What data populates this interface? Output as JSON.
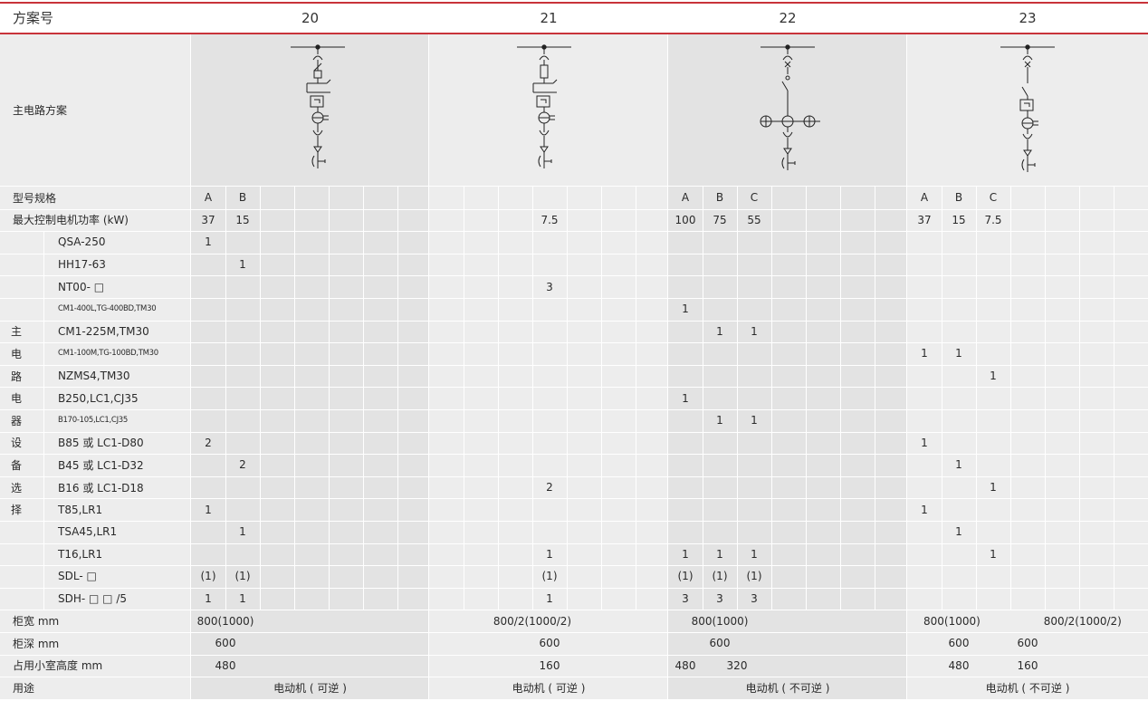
{
  "header": {
    "title": "方案号",
    "schemes": [
      "20",
      "21",
      "22",
      "23"
    ]
  },
  "row_labels": {
    "circuit": "主电路方案",
    "model": "型号规格",
    "power": "最大控制电机功率 (kW)",
    "width": "柜宽 mm",
    "depth": "柜深 mm",
    "height": "占用小室高度 mm",
    "use": "用途",
    "equip_vertical": [
      "主",
      "电",
      "路",
      "电",
      "器",
      "设",
      "备",
      "选",
      "择"
    ]
  },
  "equipment": [
    {
      "name": "QSA-250",
      "small": false
    },
    {
      "name": "HH17-63",
      "small": false
    },
    {
      "name": "NT00- □",
      "small": false
    },
    {
      "name": "CM1-400L,TG-400BD,TM30",
      "small": true
    },
    {
      "name": "CM1-225M,TM30",
      "small": false
    },
    {
      "name": "CM1-100M,TG-100BD,TM30",
      "small": true
    },
    {
      "name": "NZMS4,TM30",
      "small": false
    },
    {
      "name": "B250,LC1,CJ35",
      "small": false
    },
    {
      "name": "B170-105,LC1,CJ35",
      "small": true
    },
    {
      "name": "B85 或 LC1-D80",
      "small": false
    },
    {
      "name": "B45 或 LC1-D32",
      "small": false
    },
    {
      "name": "B16 或 LC1-D18",
      "small": false
    },
    {
      "name": "T85,LR1",
      "small": false
    },
    {
      "name": "TSA45,LR1",
      "small": false
    },
    {
      "name": "T16,LR1",
      "small": false
    },
    {
      "name": "SDL- □",
      "small": false
    },
    {
      "name": "SDH- □ □ /5",
      "small": false
    }
  ],
  "models": {
    "g0": [
      "A",
      "B"
    ],
    "g1": [],
    "g2": [
      "A",
      "B",
      "C"
    ],
    "g3": [
      "A",
      "B",
      "C"
    ]
  },
  "power": {
    "g0": [
      "37",
      "15"
    ],
    "g1": [
      "7.5"
    ],
    "g2": [
      "100",
      "75",
      "55"
    ],
    "g3": [
      "37",
      "15",
      "7.5"
    ]
  },
  "matrix": {
    "g0": [
      [
        "1",
        ""
      ],
      [
        "",
        "1"
      ],
      [
        "",
        ""
      ],
      [
        "",
        ""
      ],
      [
        "",
        ""
      ],
      [
        "",
        ""
      ],
      [
        "",
        ""
      ],
      [
        "",
        ""
      ],
      [
        "",
        ""
      ],
      [
        "2",
        ""
      ],
      [
        "",
        "2"
      ],
      [
        "",
        ""
      ],
      [
        "1",
        ""
      ],
      [
        "",
        "1"
      ],
      [
        "",
        ""
      ],
      [
        "(1)",
        "(1)"
      ],
      [
        "1",
        "1"
      ]
    ],
    "g1": [
      "",
      "",
      "3",
      "",
      "",
      "",
      "",
      "",
      "",
      "",
      "",
      "2",
      "",
      "",
      "1",
      "(1)",
      "1"
    ],
    "g2": [
      [
        "",
        "",
        ""
      ],
      [
        "",
        "",
        ""
      ],
      [
        "",
        "",
        ""
      ],
      [
        "1",
        "",
        ""
      ],
      [
        "",
        "1",
        "1"
      ],
      [
        "",
        "",
        ""
      ],
      [
        "",
        "",
        ""
      ],
      [
        "1",
        "",
        ""
      ],
      [
        "",
        "1",
        "1"
      ],
      [
        "",
        "",
        ""
      ],
      [
        "",
        "",
        ""
      ],
      [
        "",
        "",
        ""
      ],
      [
        "",
        "",
        ""
      ],
      [
        "",
        "",
        ""
      ],
      [
        "1",
        "1",
        "1"
      ],
      [
        "(1)",
        "(1)",
        "(1)"
      ],
      [
        "3",
        "3",
        "3"
      ]
    ],
    "g3": [
      [
        "",
        "",
        ""
      ],
      [
        "",
        "",
        ""
      ],
      [
        "",
        "",
        ""
      ],
      [
        "",
        "",
        ""
      ],
      [
        "",
        "",
        ""
      ],
      [
        "1",
        "1",
        ""
      ],
      [
        "",
        "",
        "1"
      ],
      [
        "",
        "",
        ""
      ],
      [
        "",
        "",
        ""
      ],
      [
        "1",
        "",
        ""
      ],
      [
        "",
        "1",
        ""
      ],
      [
        "",
        "",
        "1"
      ],
      [
        "1",
        "",
        ""
      ],
      [
        "",
        "1",
        ""
      ],
      [
        "",
        "",
        "1"
      ],
      [
        "",
        "",
        ""
      ],
      [
        "",
        "",
        ""
      ]
    ]
  },
  "cabinet": {
    "width": {
      "g0": "800(1000)",
      "g1": "800/2(1000/2)",
      "g2": "800(1000)",
      "g3a": "800(1000)",
      "g3b": "800/2(1000/2)"
    },
    "depth": {
      "g0": "600",
      "g1": "600",
      "g2": "600",
      "g3a": "600",
      "g3b": "600"
    },
    "height": {
      "g0": "480",
      "g1": "160",
      "g2a": "480",
      "g2b": "320",
      "g3a": "480",
      "g3b": "160"
    },
    "use": {
      "g0": "电动机 ( 可逆 )",
      "g1": "电动机 ( 可逆 )",
      "g2": "电动机 ( 不可逆 )",
      "g3": "电动机 ( 不可逆 )"
    }
  }
}
